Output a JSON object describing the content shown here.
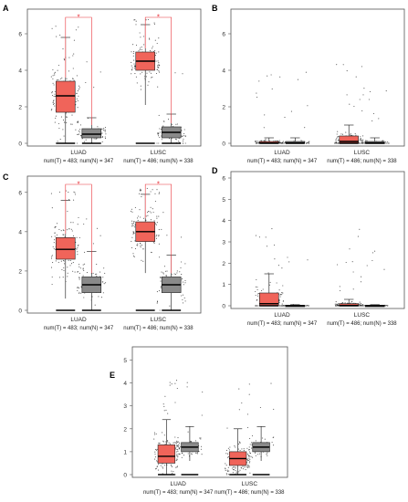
{
  "chart_data": [
    {
      "panel": "A",
      "type": "box",
      "ylim": [
        0,
        7
      ],
      "yticks": [
        0,
        2,
        4,
        6
      ],
      "categories": [
        "LUAD",
        "LUSC"
      ],
      "sample_label": [
        "num(T) = 483; num(N) = 347",
        "num(T) = 486; num(N) = 338"
      ],
      "boxes": [
        {
          "category": "LUAD",
          "group": "T",
          "q1": 1.7,
          "median": 2.6,
          "q3": 3.4,
          "whisker_low": 0.0,
          "whisker_high": 5.8
        },
        {
          "category": "LUAD",
          "group": "N",
          "q1": 0.3,
          "median": 0.5,
          "q3": 0.8,
          "whisker_low": 0.0,
          "whisker_high": 1.4
        },
        {
          "category": "LUSC",
          "group": "T",
          "q1": 4.0,
          "median": 4.5,
          "q3": 5.0,
          "whisker_low": 2.1,
          "whisker_high": 6.5
        },
        {
          "category": "LUSC",
          "group": "N",
          "q1": 0.3,
          "median": 0.6,
          "q3": 0.9,
          "whisker_low": 0.0,
          "whisker_high": 1.6
        }
      ],
      "significance": [
        {
          "category": "LUAD",
          "label": "*"
        },
        {
          "category": "LUSC",
          "label": "*"
        }
      ]
    },
    {
      "panel": "B",
      "type": "box",
      "ylim": [
        0,
        7
      ],
      "yticks": [
        0,
        2,
        4,
        6
      ],
      "categories": [
        "LUAD",
        "LUSC"
      ],
      "sample_label": [
        "num(T) = 483; num(N) = 347",
        "num(T) = 486; num(N) = 338"
      ],
      "boxes": [
        {
          "category": "LUAD",
          "group": "T",
          "q1": 0.0,
          "median": 0.02,
          "q3": 0.1,
          "whisker_low": 0.0,
          "whisker_high": 0.3
        },
        {
          "category": "LUAD",
          "group": "N",
          "q1": 0.0,
          "median": 0.02,
          "q3": 0.1,
          "whisker_low": 0.0,
          "whisker_high": 0.3
        },
        {
          "category": "LUSC",
          "group": "T",
          "q1": 0.0,
          "median": 0.1,
          "q3": 0.4,
          "whisker_low": 0.0,
          "whisker_high": 1.0
        },
        {
          "category": "LUSC",
          "group": "N",
          "q1": 0.0,
          "median": 0.02,
          "q3": 0.1,
          "whisker_low": 0.0,
          "whisker_high": 0.3
        }
      ],
      "significance": []
    },
    {
      "panel": "C",
      "type": "box",
      "ylim": [
        0,
        6.5
      ],
      "yticks": [
        0,
        2,
        4,
        6
      ],
      "categories": [
        "LUAD",
        "LUSC"
      ],
      "sample_label": [
        "num(T) = 483; num(N) = 347",
        "num(T) = 486; num(N) = 338"
      ],
      "boxes": [
        {
          "category": "LUAD",
          "group": "T",
          "q1": 2.6,
          "median": 3.1,
          "q3": 3.7,
          "whisker_low": 0.6,
          "whisker_high": 5.6
        },
        {
          "category": "LUAD",
          "group": "N",
          "q1": 0.9,
          "median": 1.3,
          "q3": 1.7,
          "whisker_low": 0.0,
          "whisker_high": 3.0
        },
        {
          "category": "LUSC",
          "group": "T",
          "q1": 3.5,
          "median": 4.0,
          "q3": 4.5,
          "whisker_low": 1.9,
          "whisker_high": 5.9
        },
        {
          "category": "LUSC",
          "group": "N",
          "q1": 0.9,
          "median": 1.3,
          "q3": 1.7,
          "whisker_low": 0.0,
          "whisker_high": 2.8
        }
      ],
      "significance": [
        {
          "category": "LUAD",
          "label": "*"
        },
        {
          "category": "LUSC",
          "label": "*"
        }
      ]
    },
    {
      "panel": "D",
      "type": "box",
      "ylim": [
        0,
        6
      ],
      "yticks": [
        0,
        1,
        2,
        3,
        4,
        5,
        6
      ],
      "categories": [
        "LUAD",
        "LUSC"
      ],
      "sample_label": [
        "num(T) = 483; num(N) = 347",
        "num(T) = 486; num(N) = 338"
      ],
      "boxes": [
        {
          "category": "LUAD",
          "group": "T",
          "q1": 0.0,
          "median": 0.1,
          "q3": 0.6,
          "whisker_low": 0.0,
          "whisker_high": 1.5
        },
        {
          "category": "LUAD",
          "group": "N",
          "q1": 0.0,
          "median": 0.0,
          "q3": 0.02,
          "whisker_low": 0.0,
          "whisker_high": 0.05
        },
        {
          "category": "LUSC",
          "group": "T",
          "q1": 0.0,
          "median": 0.02,
          "q3": 0.1,
          "whisker_low": 0.0,
          "whisker_high": 0.3
        },
        {
          "category": "LUSC",
          "group": "N",
          "q1": 0.0,
          "median": 0.0,
          "q3": 0.02,
          "whisker_low": 0.0,
          "whisker_high": 0.05
        }
      ],
      "significance": []
    },
    {
      "panel": "E",
      "type": "box",
      "ylim": [
        0,
        5.3
      ],
      "yticks": [
        0,
        1,
        2,
        3,
        4,
        5
      ],
      "categories": [
        "LUAD",
        "LUSC"
      ],
      "sample_label": [
        "num(T) = 483; num(N) = 347",
        "num(T) = 486; num(N) = 338"
      ],
      "boxes": [
        {
          "category": "LUAD",
          "group": "T",
          "q1": 0.5,
          "median": 0.8,
          "q3": 1.3,
          "whisker_low": 0.0,
          "whisker_high": 2.4
        },
        {
          "category": "LUAD",
          "group": "N",
          "q1": 1.0,
          "median": 1.2,
          "q3": 1.4,
          "whisker_low": 0.6,
          "whisker_high": 2.1
        },
        {
          "category": "LUSC",
          "group": "T",
          "q1": 0.4,
          "median": 0.7,
          "q3": 1.0,
          "whisker_low": 0.0,
          "whisker_high": 2.0
        },
        {
          "category": "LUSC",
          "group": "N",
          "q1": 1.0,
          "median": 1.2,
          "q3": 1.4,
          "whisker_low": 0.6,
          "whisker_high": 2.1
        }
      ],
      "significance": []
    }
  ],
  "colors": {
    "tumor": "#f0645a",
    "normal": "#8a8a8a",
    "significance": "#e8333a",
    "points": "#222222",
    "frame": "#555555"
  }
}
